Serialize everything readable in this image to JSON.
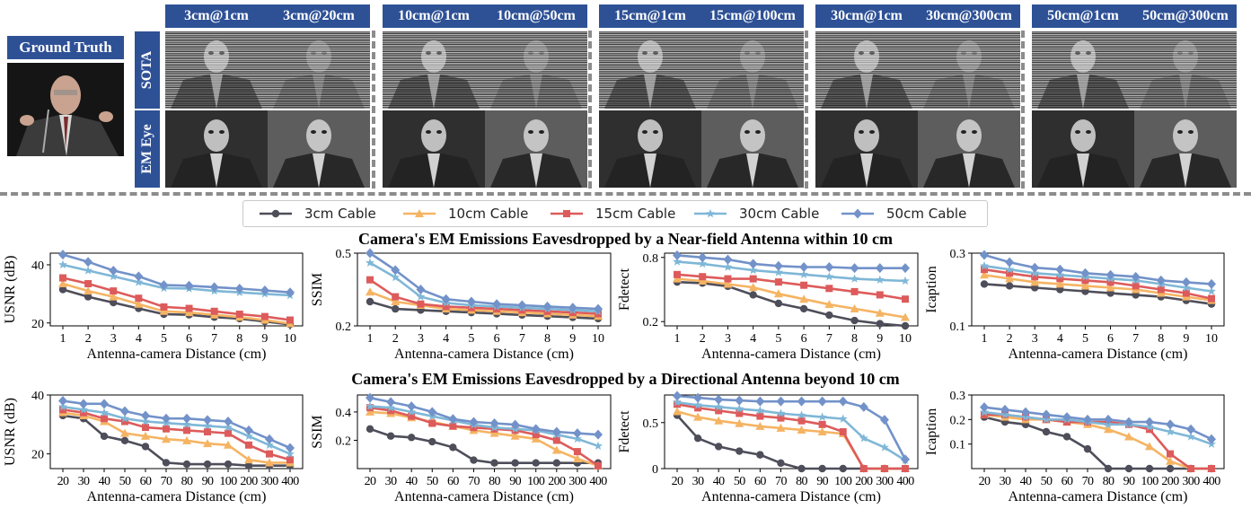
{
  "figure": {
    "ground_truth_label": "Ground Truth",
    "row_labels": [
      "SOTA",
      "EM Eye"
    ],
    "column_labels": [
      "3cm@1cm",
      "3cm@20cm",
      "10cm@1cm",
      "10cm@50cm",
      "15cm@1cm",
      "15cm@100cm",
      "30cm@1cm",
      "30cm@300cm",
      "50cm@1cm",
      "50cm@300cm"
    ],
    "legend": [
      {
        "name": "3cm Cable",
        "color": "#4e4e5a",
        "marker": "circle"
      },
      {
        "name": "10cm Cable",
        "color": "#f5b463",
        "marker": "triangle"
      },
      {
        "name": "15cm Cable",
        "color": "#dd5b5b",
        "marker": "square"
      },
      {
        "name": "30cm Cable",
        "color": "#7fb7d7",
        "marker": "star"
      },
      {
        "name": "50cm Cable",
        "color": "#7292c9",
        "marker": "diamond"
      }
    ],
    "section_titles": [
      "Camera's EM Emissions Eavesdropped by a Near-field Antenna within 10 cm",
      "Camera's EM Emissions Eavesdropped by a Directional Antenna beyond 10 cm"
    ]
  },
  "chart_data": [
    {
      "type": "line",
      "ylabel": "USNR (dB)",
      "xlabel": "Antenna-camera Distance (cm)",
      "x": [
        1,
        2,
        3,
        4,
        5,
        6,
        7,
        8,
        9,
        10
      ],
      "xticks": [
        "1",
        "2",
        "3",
        "4",
        "5",
        "6",
        "7",
        "8",
        "9",
        "10"
      ],
      "ylim": [
        19,
        44
      ],
      "yticks": [
        20,
        40
      ],
      "series": [
        {
          "name": "3cm Cable",
          "values": [
            31.5,
            29,
            27,
            25,
            23,
            22.8,
            22,
            21.5,
            20.5,
            19.5
          ]
        },
        {
          "name": "10cm Cable",
          "values": [
            33.5,
            31,
            29,
            26.5,
            24,
            23.6,
            22.8,
            22,
            21,
            19.8
          ]
        },
        {
          "name": "15cm Cable",
          "values": [
            35.5,
            33.5,
            31,
            28.5,
            25.5,
            25,
            24,
            23,
            22.2,
            21
          ]
        },
        {
          "name": "30cm Cable",
          "values": [
            40,
            38,
            36,
            34,
            32,
            31.8,
            31,
            30.5,
            30,
            29.5
          ]
        },
        {
          "name": "50cm Cable",
          "values": [
            43.5,
            41,
            38,
            36,
            33,
            32.8,
            32.3,
            31.8,
            31.2,
            30.5
          ]
        }
      ]
    },
    {
      "type": "line",
      "ylabel": "SSIM",
      "xlabel": "Antenna-camera Distance (cm)",
      "x": [
        1,
        2,
        3,
        4,
        5,
        6,
        7,
        8,
        9,
        10
      ],
      "xticks": [
        "1",
        "2",
        "3",
        "4",
        "5",
        "6",
        "7",
        "8",
        "9",
        "10"
      ],
      "ylim": [
        0.2,
        0.5
      ],
      "yticks": [
        0.2,
        0.5
      ],
      "series": [
        {
          "name": "3cm Cable",
          "values": [
            0.3,
            0.27,
            0.265,
            0.26,
            0.255,
            0.25,
            0.245,
            0.24,
            0.235,
            0.23
          ]
        },
        {
          "name": "10cm Cable",
          "values": [
            0.34,
            0.3,
            0.285,
            0.27,
            0.265,
            0.26,
            0.255,
            0.25,
            0.245,
            0.24
          ]
        },
        {
          "name": "15cm Cable",
          "values": [
            0.39,
            0.32,
            0.29,
            0.28,
            0.275,
            0.27,
            0.265,
            0.26,
            0.255,
            0.25
          ]
        },
        {
          "name": "30cm Cable",
          "values": [
            0.46,
            0.4,
            0.32,
            0.295,
            0.285,
            0.28,
            0.275,
            0.27,
            0.265,
            0.26
          ]
        },
        {
          "name": "50cm Cable",
          "values": [
            0.5,
            0.43,
            0.35,
            0.31,
            0.3,
            0.29,
            0.285,
            0.28,
            0.275,
            0.27
          ]
        }
      ]
    },
    {
      "type": "line",
      "ylabel": "Fdetect",
      "xlabel": "Antenna-camera Distance (cm)",
      "x": [
        1,
        2,
        3,
        4,
        5,
        6,
        7,
        8,
        9,
        10
      ],
      "xticks": [
        "1",
        "2",
        "3",
        "4",
        "5",
        "6",
        "7",
        "8",
        "9",
        "10"
      ],
      "ylim": [
        0.16,
        0.84
      ],
      "yticks": [
        0.2,
        0.8
      ],
      "series": [
        {
          "name": "3cm Cable",
          "values": [
            0.57,
            0.56,
            0.53,
            0.45,
            0.37,
            0.32,
            0.26,
            0.21,
            0.18,
            0.16
          ]
        },
        {
          "name": "10cm Cable",
          "values": [
            0.6,
            0.58,
            0.55,
            0.52,
            0.46,
            0.41,
            0.36,
            0.32,
            0.28,
            0.24
          ]
        },
        {
          "name": "15cm Cable",
          "values": [
            0.64,
            0.62,
            0.6,
            0.6,
            0.57,
            0.54,
            0.51,
            0.48,
            0.45,
            0.41
          ]
        },
        {
          "name": "30cm Cable",
          "values": [
            0.76,
            0.74,
            0.71,
            0.68,
            0.66,
            0.64,
            0.62,
            0.6,
            0.59,
            0.58
          ]
        },
        {
          "name": "50cm Cable",
          "values": [
            0.82,
            0.8,
            0.78,
            0.74,
            0.72,
            0.71,
            0.71,
            0.7,
            0.7,
            0.7
          ]
        }
      ]
    },
    {
      "type": "line",
      "ylabel": "Icaption",
      "xlabel": "Antenna-camera Distance (cm)",
      "x": [
        1,
        2,
        3,
        4,
        5,
        6,
        7,
        8,
        9,
        10
      ],
      "xticks": [
        "1",
        "2",
        "3",
        "4",
        "5",
        "6",
        "7",
        "8",
        "9",
        "10"
      ],
      "ylim": [
        0.1,
        0.3
      ],
      "yticks": [
        0.1,
        0.3
      ],
      "series": [
        {
          "name": "3cm Cable",
          "values": [
            0.215,
            0.21,
            0.205,
            0.2,
            0.195,
            0.19,
            0.185,
            0.18,
            0.17,
            0.16
          ]
        },
        {
          "name": "10cm Cable",
          "values": [
            0.24,
            0.23,
            0.22,
            0.215,
            0.21,
            0.205,
            0.2,
            0.19,
            0.18,
            0.17
          ]
        },
        {
          "name": "15cm Cable",
          "values": [
            0.255,
            0.245,
            0.235,
            0.23,
            0.225,
            0.22,
            0.21,
            0.2,
            0.19,
            0.175
          ]
        },
        {
          "name": "30cm Cable",
          "values": [
            0.265,
            0.255,
            0.245,
            0.24,
            0.235,
            0.23,
            0.225,
            0.215,
            0.205,
            0.195
          ]
        },
        {
          "name": "50cm Cable",
          "values": [
            0.295,
            0.275,
            0.26,
            0.255,
            0.245,
            0.24,
            0.235,
            0.225,
            0.22,
            0.215
          ]
        }
      ]
    },
    {
      "type": "line",
      "ylabel": "USNR (dB)",
      "xlabel": "Antenna-camera Distance (cm)",
      "x": [
        20,
        30,
        40,
        50,
        60,
        70,
        80,
        90,
        100,
        200,
        300,
        400
      ],
      "xticks": [
        "20",
        "30",
        "40",
        "50",
        "60",
        "70",
        "80",
        "90",
        "100",
        "200",
        "300",
        "400"
      ],
      "ylim": [
        15,
        40
      ],
      "yticks": [
        20,
        40
      ],
      "series": [
        {
          "name": "3cm Cable",
          "values": [
            33,
            32,
            26,
            24.5,
            22.5,
            17,
            16.5,
            16.5,
            16.5,
            16,
            16,
            16
          ]
        },
        {
          "name": "10cm Cable",
          "values": [
            34,
            33,
            31,
            27,
            26,
            25,
            24.5,
            23.5,
            23,
            18,
            17,
            17
          ]
        },
        {
          "name": "15cm Cable",
          "values": [
            35,
            34,
            32,
            31,
            29,
            28.5,
            28,
            27.5,
            27,
            23,
            20,
            18
          ]
        },
        {
          "name": "30cm Cable",
          "values": [
            36,
            35,
            34,
            32,
            31,
            30.5,
            30,
            29.5,
            29,
            26,
            23,
            20
          ]
        },
        {
          "name": "50cm Cable",
          "values": [
            38,
            37,
            37,
            34.5,
            33,
            32,
            32,
            31.5,
            31,
            28,
            25,
            22
          ]
        }
      ]
    },
    {
      "type": "line",
      "ylabel": "SSIM",
      "xlabel": "Antenna-camera Distance (cm)",
      "x": [
        20,
        30,
        40,
        50,
        60,
        70,
        80,
        90,
        100,
        200,
        300,
        400
      ],
      "xticks": [
        "20",
        "30",
        "40",
        "50",
        "60",
        "70",
        "80",
        "90",
        "100",
        "200",
        "300",
        "400"
      ],
      "ylim": [
        0.0,
        0.52
      ],
      "yticks": [
        0.2,
        0.4
      ],
      "series": [
        {
          "name": "3cm Cable",
          "values": [
            0.28,
            0.23,
            0.22,
            0.19,
            0.15,
            0.06,
            0.04,
            0.04,
            0.04,
            0.04,
            0.04,
            0.04
          ]
        },
        {
          "name": "10cm Cable",
          "values": [
            0.4,
            0.39,
            0.36,
            0.33,
            0.3,
            0.27,
            0.25,
            0.23,
            0.21,
            0.13,
            0.07,
            0.02
          ]
        },
        {
          "name": "15cm Cable",
          "values": [
            0.43,
            0.41,
            0.37,
            0.32,
            0.3,
            0.29,
            0.28,
            0.27,
            0.24,
            0.2,
            0.12,
            0.02
          ]
        },
        {
          "name": "30cm Cable",
          "values": [
            0.44,
            0.43,
            0.4,
            0.37,
            0.34,
            0.31,
            0.29,
            0.28,
            0.27,
            0.24,
            0.21,
            0.16
          ]
        },
        {
          "name": "50cm Cable",
          "values": [
            0.5,
            0.47,
            0.44,
            0.4,
            0.35,
            0.33,
            0.32,
            0.31,
            0.28,
            0.26,
            0.25,
            0.24
          ]
        }
      ]
    },
    {
      "type": "line",
      "ylabel": "Fdetect",
      "xlabel": "Antenna-camera Distance (cm)",
      "x": [
        20,
        30,
        40,
        50,
        60,
        70,
        80,
        90,
        100,
        200,
        300,
        400
      ],
      "xticks": [
        "20",
        "30",
        "40",
        "50",
        "60",
        "70",
        "80",
        "90",
        "100",
        "200",
        "300",
        "400"
      ],
      "ylim": [
        0.0,
        0.8
      ],
      "yticks": [
        0.0,
        0.5
      ],
      "series": [
        {
          "name": "3cm Cable",
          "values": [
            0.58,
            0.33,
            0.24,
            0.19,
            0.15,
            0.06,
            0.0,
            0.0,
            0.0,
            0.0,
            0.0,
            0.0
          ]
        },
        {
          "name": "10cm Cable",
          "values": [
            0.62,
            0.56,
            0.52,
            0.49,
            0.46,
            0.44,
            0.42,
            0.4,
            0.38,
            0.0,
            0.0,
            0.0
          ]
        },
        {
          "name": "15cm Cable",
          "values": [
            0.7,
            0.66,
            0.63,
            0.6,
            0.57,
            0.55,
            0.52,
            0.48,
            0.4,
            0.0,
            0.0,
            0.0
          ]
        },
        {
          "name": "30cm Cable",
          "values": [
            0.72,
            0.69,
            0.67,
            0.65,
            0.63,
            0.6,
            0.58,
            0.56,
            0.54,
            0.33,
            0.23,
            0.09
          ]
        },
        {
          "name": "50cm Cable",
          "values": [
            0.79,
            0.77,
            0.75,
            0.74,
            0.73,
            0.73,
            0.73,
            0.73,
            0.73,
            0.67,
            0.53,
            0.1
          ]
        }
      ]
    },
    {
      "type": "line",
      "ylabel": "Icaption",
      "xlabel": "Antenna-camera Distance (cm)",
      "x": [
        20,
        30,
        40,
        50,
        60,
        70,
        80,
        90,
        100,
        200,
        300,
        400
      ],
      "xticks": [
        "20",
        "30",
        "40",
        "50",
        "60",
        "70",
        "80",
        "90",
        "100",
        "200",
        "300",
        "400"
      ],
      "ylim": [
        0.0,
        0.3
      ],
      "yticks": [
        0.1,
        0.2,
        0.3
      ],
      "series": [
        {
          "name": "3cm Cable",
          "values": [
            0.21,
            0.19,
            0.18,
            0.15,
            0.13,
            0.08,
            0.0,
            0.0,
            0.0,
            0.0,
            0.0,
            0.0
          ]
        },
        {
          "name": "10cm Cable",
          "values": [
            0.22,
            0.21,
            0.2,
            0.2,
            0.19,
            0.18,
            0.16,
            0.13,
            0.09,
            0.03,
            0.0,
            0.0
          ]
        },
        {
          "name": "15cm Cable",
          "values": [
            0.22,
            0.22,
            0.21,
            0.2,
            0.19,
            0.19,
            0.19,
            0.18,
            0.16,
            0.06,
            0.0,
            0.0
          ]
        },
        {
          "name": "30cm Cable",
          "values": [
            0.23,
            0.22,
            0.21,
            0.2,
            0.2,
            0.19,
            0.18,
            0.18,
            0.17,
            0.15,
            0.13,
            0.1
          ]
        },
        {
          "name": "50cm Cable",
          "values": [
            0.25,
            0.24,
            0.23,
            0.22,
            0.21,
            0.2,
            0.2,
            0.19,
            0.19,
            0.18,
            0.16,
            0.12
          ]
        }
      ]
    }
  ]
}
